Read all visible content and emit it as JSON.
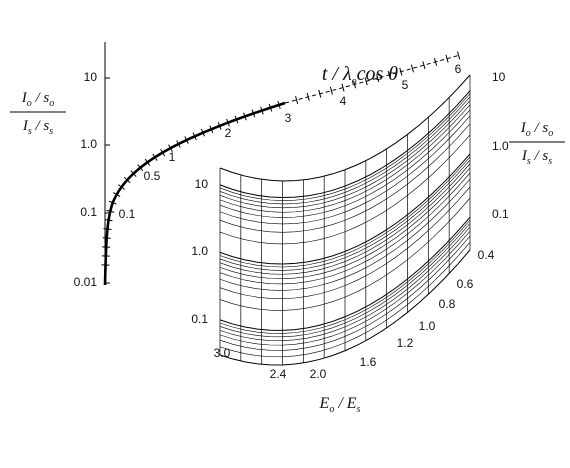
{
  "left_axis": {
    "ticks": [
      "10",
      "1.0",
      "0.1",
      "0.01"
    ],
    "label": {
      "numerator": [
        {
          "text": "I",
          "sub": "o"
        },
        {
          "text": " / s",
          "sub": "o"
        }
      ],
      "denominator": [
        {
          "text": "I",
          "sub": "s"
        },
        {
          "text": " / s",
          "sub": "s"
        }
      ]
    }
  },
  "curve": {
    "label": [
      {
        "text": "t / λ",
        "sub": "o"
      },
      {
        "text": "cos θ"
      }
    ],
    "ticks": [
      "0.1",
      "0.5",
      "1",
      "2",
      "3",
      "4",
      "5",
      "6"
    ]
  },
  "surface": {
    "left_ticks": [
      "10",
      "1.0",
      "0.1"
    ],
    "bottom_ticks": [
      "3.0",
      "2.4",
      "2.0",
      "1.6",
      "1.2",
      "1.0",
      "0.8",
      "0.6",
      "0.4"
    ],
    "right_ticks": [
      "10",
      "1.0",
      "0.1"
    ],
    "right_label": {
      "numerator": [
        {
          "text": "I",
          "sub": "o"
        },
        {
          "text": " / s",
          "sub": "o"
        }
      ],
      "denominator": [
        {
          "text": "I",
          "sub": "s"
        },
        {
          "text": " / s",
          "sub": "s"
        }
      ]
    },
    "bottom_label": [
      {
        "text": "E",
        "sub": "o"
      },
      {
        "text": " / E",
        "sub": "s"
      }
    ]
  }
}
